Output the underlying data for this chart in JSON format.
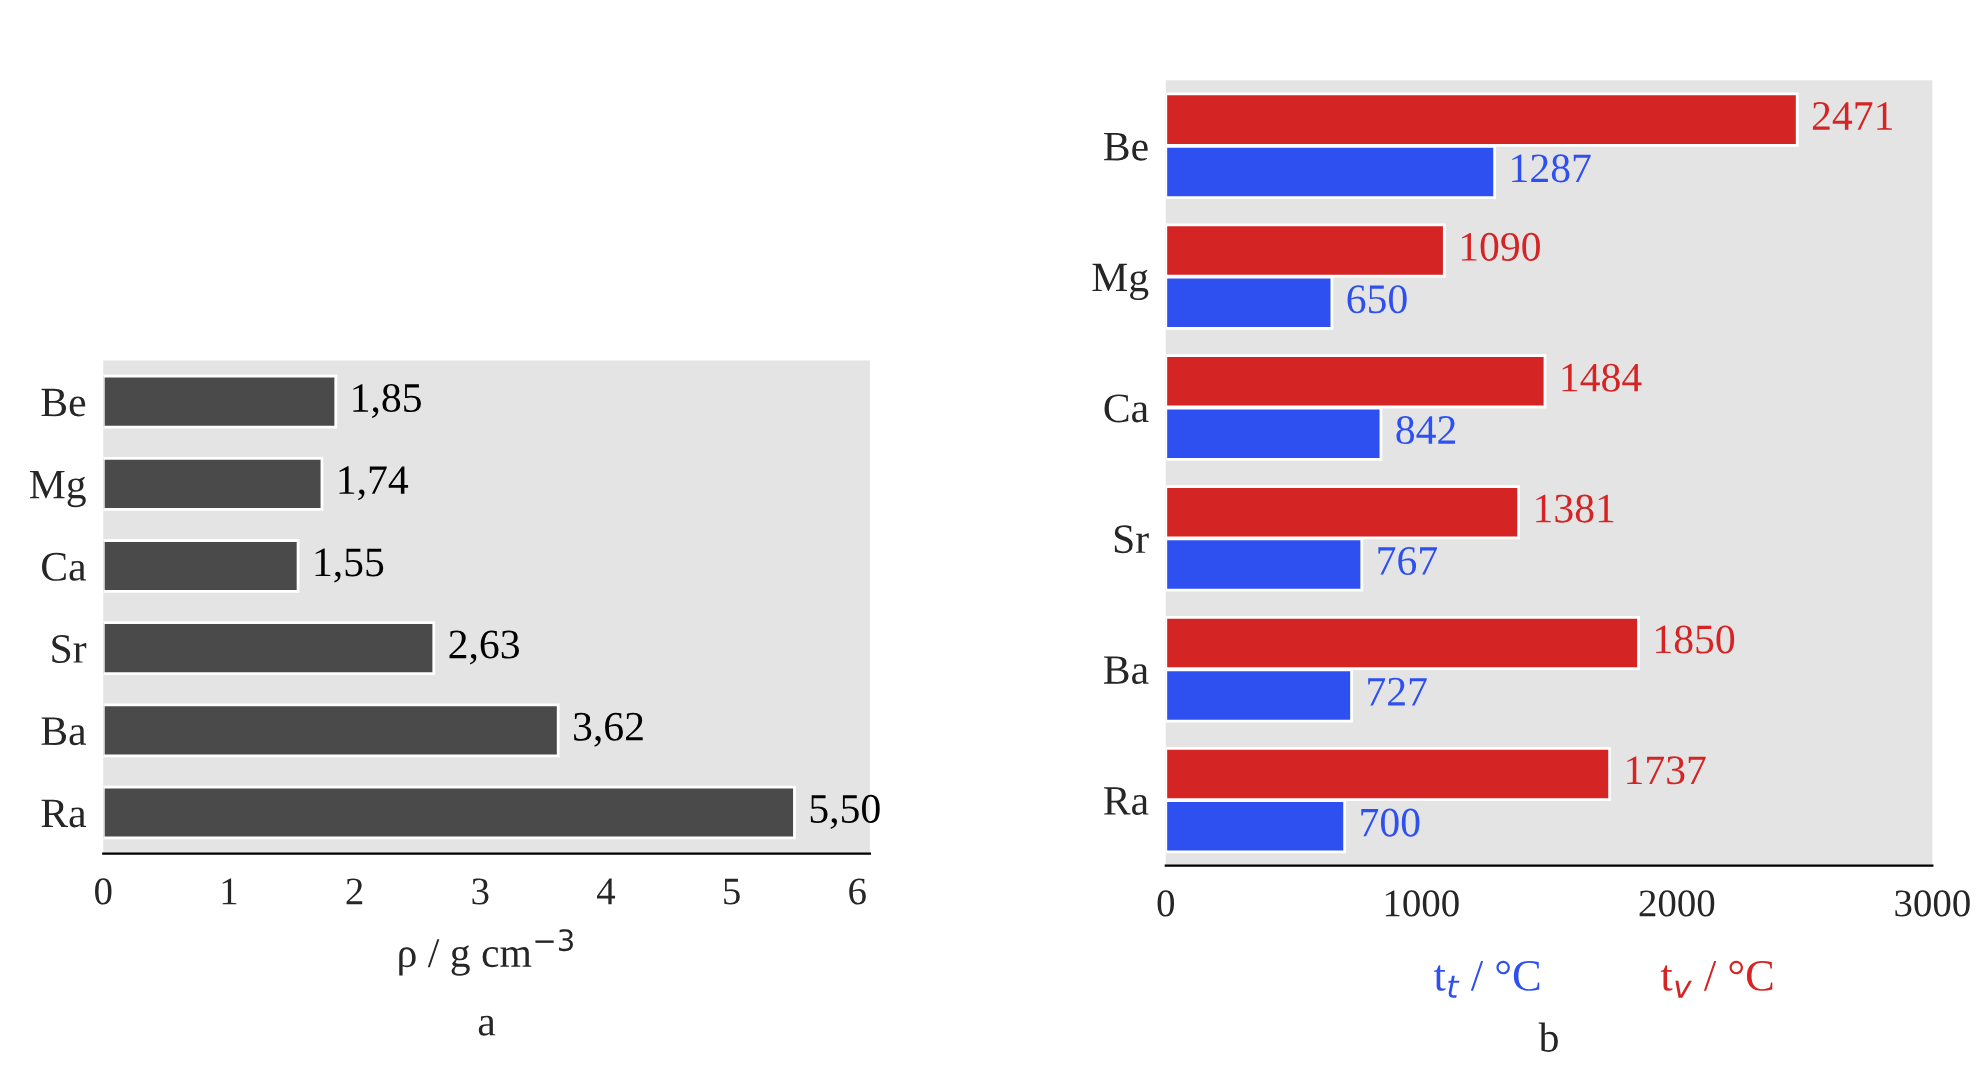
{
  "chart_data": [
    {
      "type": "bar",
      "orientation": "horizontal",
      "categories": [
        "Be",
        "Mg",
        "Ca",
        "Sr",
        "Ba",
        "Ra"
      ],
      "values": [
        1.85,
        1.74,
        1.55,
        2.63,
        3.62,
        5.5
      ],
      "value_labels": [
        "1,85",
        "1,74",
        "1,55",
        "2,63",
        "3,62",
        "5,50"
      ],
      "color": "#4a4a4a",
      "xlim": [
        0,
        6.1
      ],
      "xticks": [
        0,
        1,
        2,
        3,
        4,
        5,
        6
      ],
      "xlabel": "ρ / g cm$^{−3}$",
      "annotations": [
        "a"
      ],
      "grid": false
    },
    {
      "type": "bar",
      "orientation": "horizontal",
      "categories": [
        "Be",
        "Mg",
        "Ca",
        "Sr",
        "Ba",
        "Ra"
      ],
      "series": [
        {
          "name": "t$_{v}$ / °C",
          "color": "#d42424",
          "values": [
            2471,
            1090,
            1484,
            1381,
            1850,
            1737
          ]
        },
        {
          "name": "t$_{t}$ / °C",
          "color": "#2f50f0",
          "values": [
            1287,
            650,
            842,
            767,
            727,
            700
          ]
        }
      ],
      "data_labels": true,
      "xlim": [
        0,
        3000
      ],
      "xticks": [
        0,
        1000,
        2000,
        3000
      ],
      "annotations": [
        "b"
      ],
      "grid": false
    }
  ]
}
